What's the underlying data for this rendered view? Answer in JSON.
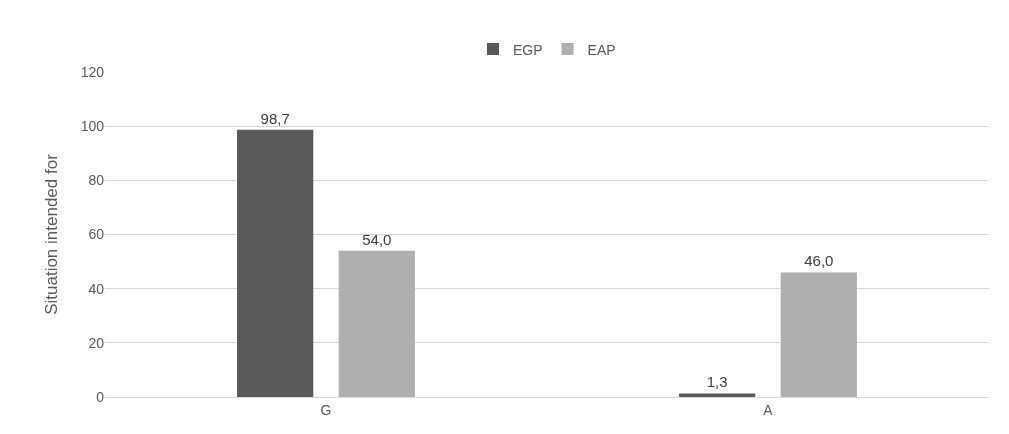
{
  "chart_data": {
    "type": "bar",
    "ylabel": "Situation intended for",
    "categories": [
      "G",
      "A"
    ],
    "series": [
      {
        "name": "EGP",
        "color": "#595959",
        "values": [
          98.7,
          1.3
        ],
        "value_labels": [
          "98,7",
          "1,3"
        ]
      },
      {
        "name": "EAP",
        "color": "#afafaf",
        "values": [
          54.0,
          46.0
        ],
        "value_labels": [
          "54,0",
          "46,0"
        ]
      }
    ],
    "ylim": [
      0,
      120
    ],
    "yticks": [
      0,
      20,
      40,
      60,
      80,
      100,
      120
    ],
    "grid": "y",
    "legend": "top"
  }
}
